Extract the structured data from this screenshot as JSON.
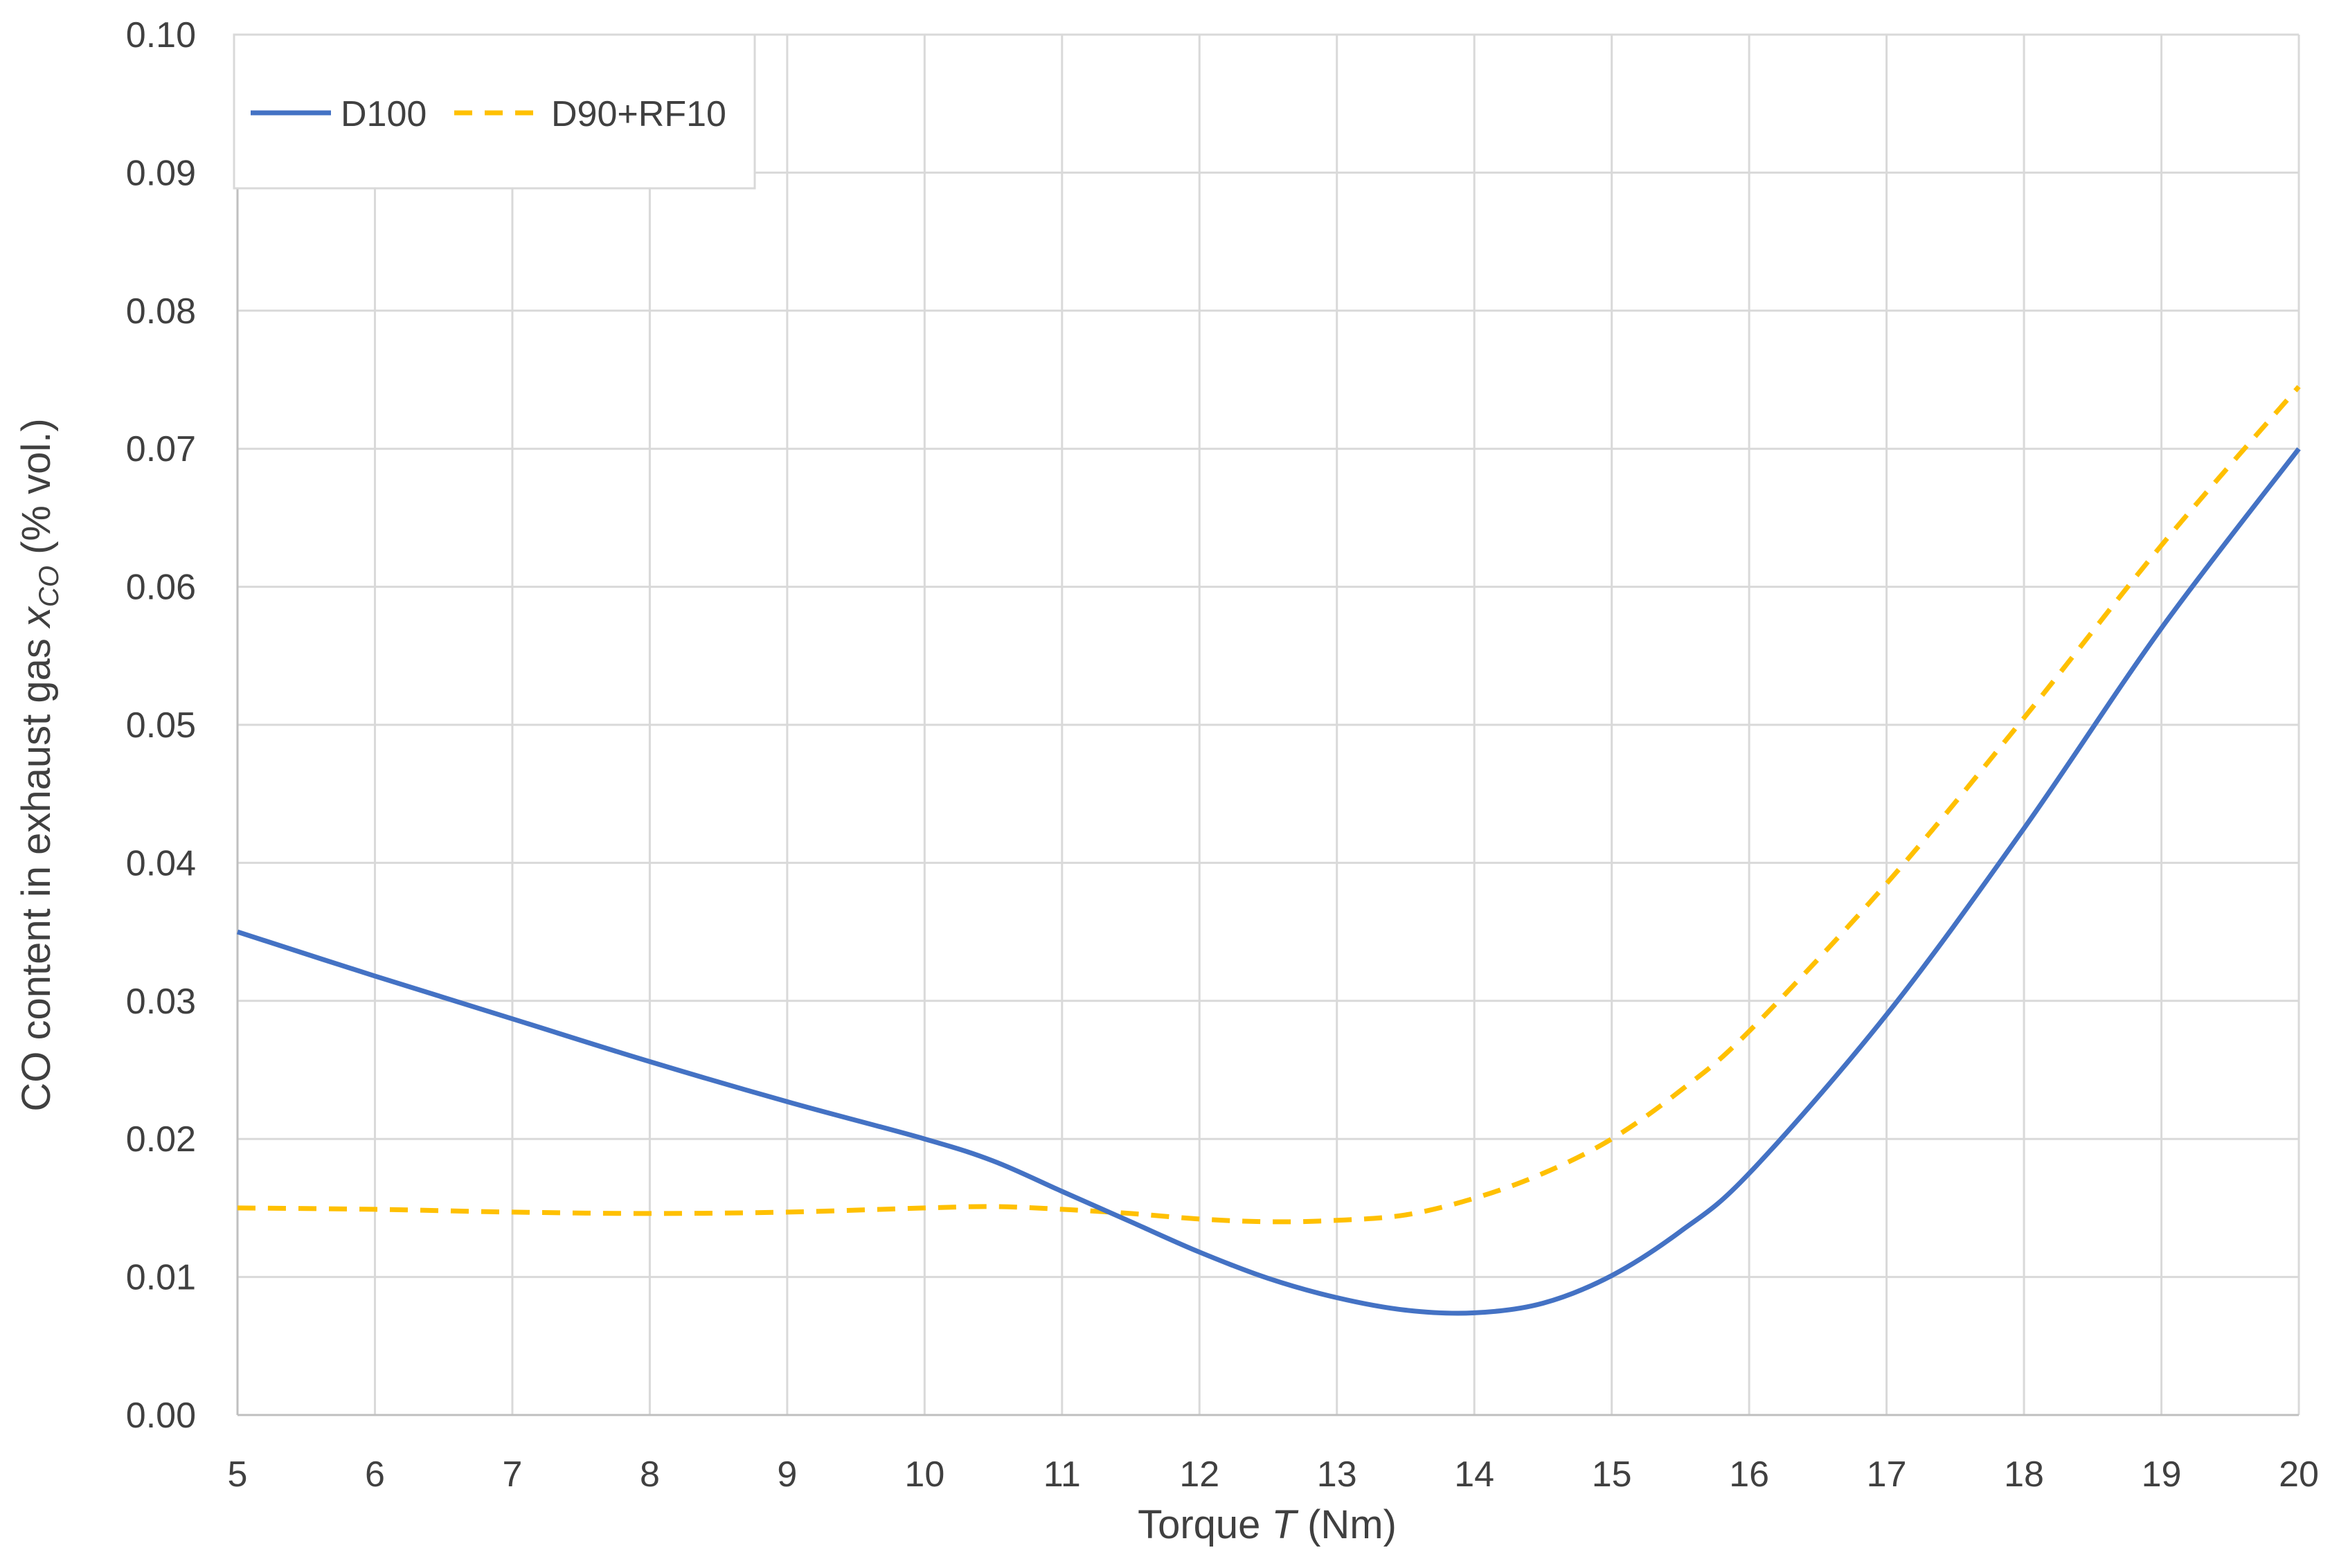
{
  "chart_data": {
    "type": "line",
    "xlabel": {
      "main": "Torque ",
      "symbol": "T",
      "unit": " (Nm)"
    },
    "ylabel": {
      "main": "CO content in exhaust gas ",
      "symbol": "x",
      "subscript": "CO",
      "unit": " (% vol.)"
    },
    "xlim": [
      5,
      20
    ],
    "ylim": [
      0,
      0.1
    ],
    "x_ticks": [
      "5",
      "6",
      "7",
      "8",
      "9",
      "10",
      "11",
      "12",
      "13",
      "14",
      "15",
      "16",
      "17",
      "18",
      "19",
      "20"
    ],
    "y_ticks": [
      "0.00",
      "0.01",
      "0.02",
      "0.03",
      "0.04",
      "0.05",
      "0.06",
      "0.07",
      "0.08",
      "0.09",
      "0.10"
    ],
    "grid": true,
    "legend_position": "top-left",
    "series": [
      {
        "name": "D100",
        "color": "#4472c4",
        "style": "solid",
        "x": [
          5,
          6,
          7,
          8,
          9,
          10,
          10.5,
          11,
          11.5,
          12,
          12.5,
          13,
          13.5,
          14,
          14.5,
          15,
          15.5,
          16,
          17,
          18,
          19,
          20
        ],
        "y": [
          0.035,
          0.0318,
          0.0287,
          0.0256,
          0.0227,
          0.02,
          0.0184,
          0.0162,
          0.014,
          0.0118,
          0.0099,
          0.0085,
          0.0076,
          0.0074,
          0.0081,
          0.0101,
          0.0133,
          0.0175,
          0.029,
          0.0425,
          0.057,
          0.07
        ]
      },
      {
        "name": "D90+RF10",
        "color": "#ffc000",
        "style": "dashed",
        "x": [
          5,
          6,
          7,
          8,
          9,
          10,
          10.5,
          11,
          11.5,
          12,
          12.5,
          13,
          13.5,
          14,
          14.5,
          15,
          15.5,
          16,
          17,
          18,
          19,
          20
        ],
        "y": [
          0.015,
          0.0149,
          0.0147,
          0.0146,
          0.0147,
          0.015,
          0.0151,
          0.0149,
          0.0146,
          0.0142,
          0.014,
          0.0141,
          0.0145,
          0.0157,
          0.0175,
          0.02,
          0.0235,
          0.0278,
          0.0385,
          0.0505,
          0.063,
          0.0745
        ]
      }
    ]
  }
}
